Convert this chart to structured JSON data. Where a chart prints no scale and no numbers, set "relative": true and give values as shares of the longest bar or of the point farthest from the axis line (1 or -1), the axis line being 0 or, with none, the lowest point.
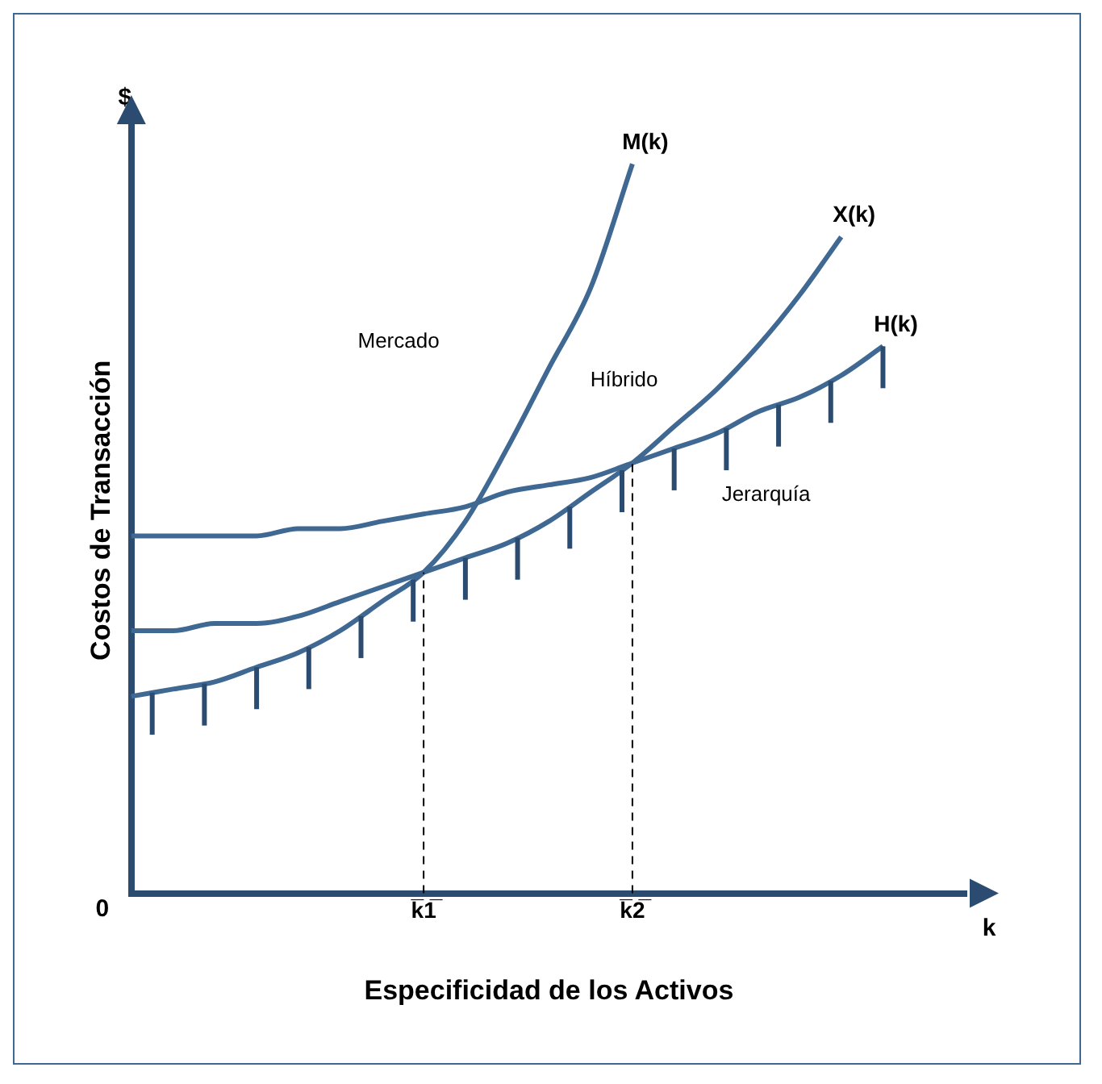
{
  "chart_data": {
    "type": "line",
    "relative": true,
    "xlabel": "Especificidad de los Activos",
    "ylabel": "Costos de Transacción",
    "categories": [
      null,
      null,
      null,
      null,
      null,
      null,
      null,
      "k̅1̅",
      null,
      null,
      null,
      null,
      "k̅2̅",
      null,
      null,
      null,
      null,
      null,
      null,
      null,
      null
    ],
    "series": [
      {
        "name": "M(k)",
        "color": "#3f6892",
        "values": [
          0.27,
          0.28,
          0.29,
          0.31,
          0.33,
          0.36,
          0.4,
          0.44,
          0.51,
          0.61,
          0.72,
          0.83,
          1,
          null,
          null,
          null,
          null,
          null,
          null,
          null,
          null
        ]
      },
      {
        "name": "X(k)",
        "color": "#3f6892",
        "values": [
          0.36,
          0.36,
          0.37,
          0.37,
          0.38,
          0.4,
          0.42,
          0.44,
          0.46,
          0.48,
          0.51,
          0.55,
          0.59,
          0.64,
          0.69,
          0.75,
          0.82,
          0.9,
          null,
          null,
          null
        ]
      },
      {
        "name": "H(k)",
        "color": "#3f6892",
        "values": [
          0.49,
          0.49,
          0.49,
          0.49,
          0.5,
          0.5,
          0.51,
          0.52,
          0.53,
          0.55,
          0.56,
          0.57,
          0.59,
          0.61,
          0.63,
          0.66,
          0.68,
          0.71,
          0.75,
          null,
          null
        ]
      }
    ],
    "ref_lines": [
      {
        "axis": "x",
        "value": "k̅1̅",
        "label": null,
        "line_style": "dashed"
      },
      {
        "axis": "x",
        "value": "k̅2̅",
        "label": null,
        "line_style": "dashed"
      }
    ],
    "annotations": [
      "0",
      "$",
      "k",
      "Mercado",
      "Híbrido",
      "Jerarquía"
    ],
    "grid": false,
    "legend": false,
    "marker": "none",
    "line_style": "solid"
  }
}
